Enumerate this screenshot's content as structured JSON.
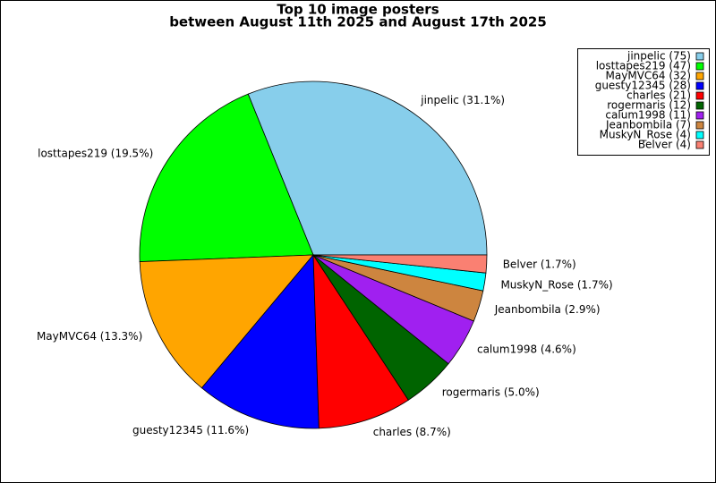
{
  "chart_data": {
    "type": "pie",
    "title": [
      "Top 10 image posters",
      "between August 11th 2025 and August 17th 2025"
    ],
    "categories": [
      "jinpelic",
      "losttapes219",
      "MayMVC64",
      "guesty12345",
      "charles",
      "rogermaris",
      "calum1998",
      "Jeanbombila",
      "MuskyN_Rose",
      "Belver"
    ],
    "values": [
      75,
      47,
      32,
      28,
      21,
      12,
      11,
      7,
      4,
      4
    ],
    "slice_labels": [
      "jinpelic (31.1%)",
      "losttapes219 (19.5%)",
      "MayMVC64 (13.3%)",
      "guesty12345 (11.6%)",
      "charles (8.7%)",
      "rogermaris (5.0%)",
      "calum1998 (4.6%)",
      "Jeanbombila (2.9%)",
      "MuskyN_Rose (1.7%)",
      "Belver (1.7%)"
    ],
    "legend_labels": [
      "jinpelic (75)",
      "losttapes219 (47)",
      "MayMVC64 (32)",
      "guesty12345 (28)",
      "charles (21)",
      "rogermaris (12)",
      "calum1998 (11)",
      "Jeanbombila (7)",
      "MuskyN_Rose (4)",
      "Belver (4)"
    ],
    "colors": [
      "#87ceeb",
      "#00ff00",
      "#ffa500",
      "#0000ff",
      "#ff0000",
      "#006400",
      "#a020f0",
      "#cd853f",
      "#00ffff",
      "#fa8072"
    ],
    "legend": "upper right"
  }
}
